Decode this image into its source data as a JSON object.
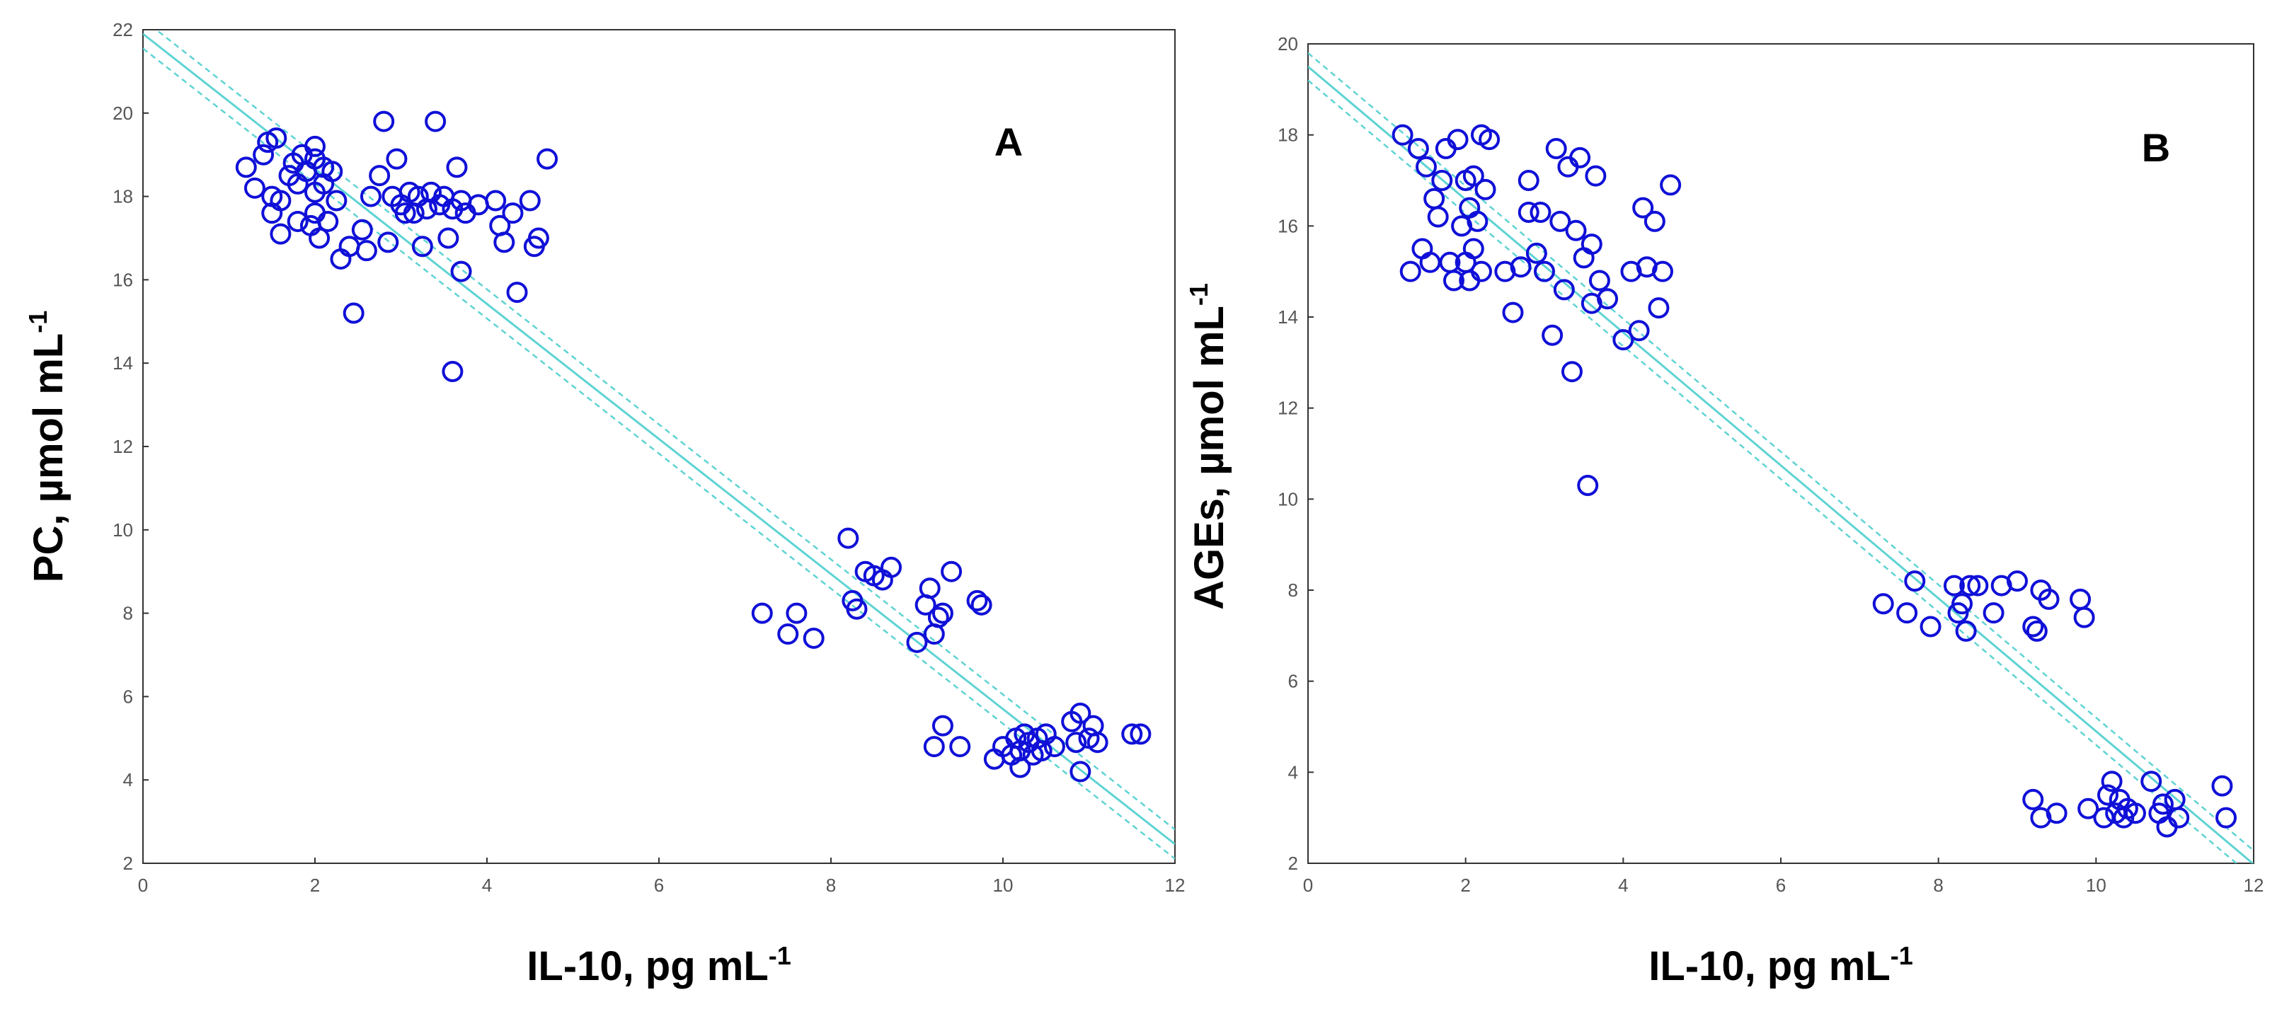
{
  "figure_colors": {
    "points": "#1010d8",
    "fit_line": "#5fd3d3",
    "frame": "#333333"
  },
  "chart_data": [
    {
      "type": "scatter",
      "panel_label": "A",
      "xlabel": "IL-10, pg mL",
      "xlabel_sup": "-1",
      "ylabel": "PC, µmol mL",
      "ylabel_sup": "-1",
      "xlim": [
        0,
        12
      ],
      "ylim": [
        2,
        22
      ],
      "xticks": [
        0,
        2,
        4,
        6,
        8,
        10,
        12
      ],
      "yticks": [
        2,
        4,
        6,
        8,
        10,
        12,
        14,
        16,
        18,
        20,
        22
      ],
      "fit": {
        "intercept": 21.9,
        "slope": -1.62,
        "ci_offset": 0.35
      },
      "points": [
        [
          1.2,
          18.7
        ],
        [
          1.3,
          18.2
        ],
        [
          1.4,
          19.0
        ],
        [
          1.45,
          19.3
        ],
        [
          1.5,
          18.0
        ],
        [
          1.5,
          17.6
        ],
        [
          1.55,
          19.4
        ],
        [
          1.6,
          17.9
        ],
        [
          1.6,
          17.1
        ],
        [
          1.7,
          18.5
        ],
        [
          1.75,
          18.8
        ],
        [
          1.8,
          18.3
        ],
        [
          1.8,
          17.4
        ],
        [
          1.85,
          19.0
        ],
        [
          1.9,
          18.6
        ],
        [
          1.95,
          17.3
        ],
        [
          2.0,
          19.2
        ],
        [
          2.0,
          18.9
        ],
        [
          2.0,
          18.1
        ],
        [
          2.0,
          17.6
        ],
        [
          2.05,
          17.0
        ],
        [
          2.1,
          18.7
        ],
        [
          2.1,
          18.3
        ],
        [
          2.15,
          17.4
        ],
        [
          2.2,
          18.6
        ],
        [
          2.25,
          17.9
        ],
        [
          2.3,
          16.5
        ],
        [
          2.4,
          16.8
        ],
        [
          2.45,
          15.2
        ],
        [
          2.55,
          17.2
        ],
        [
          2.6,
          16.7
        ],
        [
          2.65,
          18.0
        ],
        [
          2.75,
          18.5
        ],
        [
          2.8,
          19.8
        ],
        [
          2.85,
          16.9
        ],
        [
          2.9,
          18.0
        ],
        [
          2.95,
          18.9
        ],
        [
          3.0,
          17.8
        ],
        [
          3.05,
          17.6
        ],
        [
          3.1,
          18.1
        ],
        [
          3.15,
          17.6
        ],
        [
          3.2,
          18.0
        ],
        [
          3.25,
          16.8
        ],
        [
          3.3,
          17.7
        ],
        [
          3.35,
          18.1
        ],
        [
          3.4,
          19.8
        ],
        [
          3.45,
          17.8
        ],
        [
          3.5,
          18.0
        ],
        [
          3.55,
          17.0
        ],
        [
          3.6,
          17.7
        ],
        [
          3.6,
          13.8
        ],
        [
          3.65,
          18.7
        ],
        [
          3.7,
          17.9
        ],
        [
          3.7,
          16.2
        ],
        [
          3.75,
          17.6
        ],
        [
          3.9,
          17.8
        ],
        [
          4.1,
          17.9
        ],
        [
          4.15,
          17.3
        ],
        [
          4.2,
          16.9
        ],
        [
          4.3,
          17.6
        ],
        [
          4.35,
          15.7
        ],
        [
          4.5,
          17.9
        ],
        [
          4.55,
          16.8
        ],
        [
          4.6,
          17.0
        ],
        [
          4.7,
          18.9
        ],
        [
          7.2,
          8.0
        ],
        [
          7.5,
          7.5
        ],
        [
          7.6,
          8.0
        ],
        [
          7.8,
          7.4
        ],
        [
          8.2,
          9.8
        ],
        [
          8.25,
          8.3
        ],
        [
          8.3,
          8.1
        ],
        [
          8.4,
          9.0
        ],
        [
          8.5,
          8.9
        ],
        [
          8.6,
          8.8
        ],
        [
          8.7,
          9.1
        ],
        [
          9.0,
          7.3
        ],
        [
          9.1,
          8.2
        ],
        [
          9.15,
          8.6
        ],
        [
          9.2,
          7.5
        ],
        [
          9.25,
          7.9
        ],
        [
          9.3,
          8.0
        ],
        [
          9.4,
          9.0
        ],
        [
          9.7,
          8.3
        ],
        [
          9.75,
          8.2
        ],
        [
          9.2,
          4.8
        ],
        [
          9.3,
          5.3
        ],
        [
          9.5,
          4.8
        ],
        [
          9.9,
          4.5
        ],
        [
          10.0,
          4.8
        ],
        [
          10.1,
          4.6
        ],
        [
          10.15,
          5.0
        ],
        [
          10.2,
          4.7
        ],
        [
          10.2,
          4.3
        ],
        [
          10.25,
          5.1
        ],
        [
          10.3,
          4.9
        ],
        [
          10.35,
          4.6
        ],
        [
          10.4,
          5.0
        ],
        [
          10.45,
          4.7
        ],
        [
          10.5,
          5.1
        ],
        [
          10.6,
          4.8
        ],
        [
          10.8,
          5.4
        ],
        [
          10.85,
          4.9
        ],
        [
          10.9,
          4.2
        ],
        [
          10.9,
          5.6
        ],
        [
          11.0,
          5.0
        ],
        [
          11.05,
          5.3
        ],
        [
          11.1,
          4.9
        ],
        [
          11.5,
          5.1
        ],
        [
          11.6,
          5.1
        ]
      ]
    },
    {
      "type": "scatter",
      "panel_label": "B",
      "xlabel": "IL-10, pg mL",
      "xlabel_sup": "-1",
      "ylabel": "AGEs, µmol mL",
      "ylabel_sup": "-1",
      "xlim": [
        0,
        12
      ],
      "ylim": [
        2,
        20
      ],
      "xticks": [
        0,
        2,
        4,
        6,
        8,
        10,
        12
      ],
      "yticks": [
        2,
        4,
        6,
        8,
        10,
        12,
        14,
        16,
        18,
        20
      ],
      "fit": {
        "intercept": 19.5,
        "slope": -1.46,
        "ci_offset": 0.3
      },
      "points": [
        [
          1.2,
          18.0
        ],
        [
          1.3,
          15.0
        ],
        [
          1.4,
          17.7
        ],
        [
          1.45,
          15.5
        ],
        [
          1.5,
          17.3
        ],
        [
          1.55,
          15.2
        ],
        [
          1.6,
          16.6
        ],
        [
          1.65,
          16.2
        ],
        [
          1.7,
          17.0
        ],
        [
          1.75,
          17.7
        ],
        [
          1.8,
          15.2
        ],
        [
          1.85,
          14.8
        ],
        [
          1.9,
          17.9
        ],
        [
          1.95,
          16.0
        ],
        [
          2.0,
          17.0
        ],
        [
          2.0,
          15.2
        ],
        [
          2.05,
          16.4
        ],
        [
          2.05,
          14.8
        ],
        [
          2.1,
          17.1
        ],
        [
          2.1,
          15.5
        ],
        [
          2.15,
          16.1
        ],
        [
          2.2,
          18.0
        ],
        [
          2.2,
          15.0
        ],
        [
          2.25,
          16.8
        ],
        [
          2.3,
          17.9
        ],
        [
          2.5,
          15.0
        ],
        [
          2.6,
          14.1
        ],
        [
          2.7,
          15.1
        ],
        [
          2.8,
          17.0
        ],
        [
          2.8,
          16.3
        ],
        [
          2.9,
          15.4
        ],
        [
          2.95,
          16.3
        ],
        [
          3.0,
          15.0
        ],
        [
          3.1,
          13.6
        ],
        [
          3.15,
          17.7
        ],
        [
          3.2,
          16.1
        ],
        [
          3.25,
          14.6
        ],
        [
          3.3,
          17.3
        ],
        [
          3.35,
          12.8
        ],
        [
          3.4,
          15.9
        ],
        [
          3.45,
          17.5
        ],
        [
          3.5,
          15.3
        ],
        [
          3.55,
          10.3
        ],
        [
          3.6,
          14.3
        ],
        [
          3.6,
          15.6
        ],
        [
          3.65,
          17.1
        ],
        [
          3.7,
          14.8
        ],
        [
          3.8,
          14.4
        ],
        [
          4.0,
          13.5
        ],
        [
          4.1,
          15.0
        ],
        [
          4.2,
          13.7
        ],
        [
          4.25,
          16.4
        ],
        [
          4.3,
          15.1
        ],
        [
          4.4,
          16.1
        ],
        [
          4.45,
          14.2
        ],
        [
          4.5,
          15.0
        ],
        [
          4.6,
          16.9
        ],
        [
          7.3,
          7.7
        ],
        [
          7.6,
          7.5
        ],
        [
          7.7,
          8.2
        ],
        [
          7.9,
          7.2
        ],
        [
          8.2,
          8.1
        ],
        [
          8.25,
          7.5
        ],
        [
          8.3,
          7.7
        ],
        [
          8.35,
          7.1
        ],
        [
          8.4,
          8.1
        ],
        [
          8.5,
          8.1
        ],
        [
          8.7,
          7.5
        ],
        [
          8.8,
          8.1
        ],
        [
          9.0,
          8.2
        ],
        [
          9.2,
          7.2
        ],
        [
          9.25,
          7.1
        ],
        [
          9.3,
          8.0
        ],
        [
          9.4,
          7.8
        ],
        [
          9.8,
          7.8
        ],
        [
          9.85,
          7.4
        ],
        [
          9.2,
          3.4
        ],
        [
          9.3,
          3.0
        ],
        [
          9.5,
          3.1
        ],
        [
          9.9,
          3.2
        ],
        [
          10.1,
          3.0
        ],
        [
          10.15,
          3.5
        ],
        [
          10.2,
          3.8
        ],
        [
          10.25,
          3.1
        ],
        [
          10.3,
          3.4
        ],
        [
          10.35,
          3.0
        ],
        [
          10.4,
          3.2
        ],
        [
          10.5,
          3.1
        ],
        [
          10.7,
          3.8
        ],
        [
          10.8,
          3.1
        ],
        [
          10.85,
          3.3
        ],
        [
          10.9,
          2.8
        ],
        [
          11.0,
          3.4
        ],
        [
          11.05,
          3.0
        ],
        [
          11.6,
          3.7
        ],
        [
          11.65,
          3.0
        ]
      ]
    }
  ]
}
